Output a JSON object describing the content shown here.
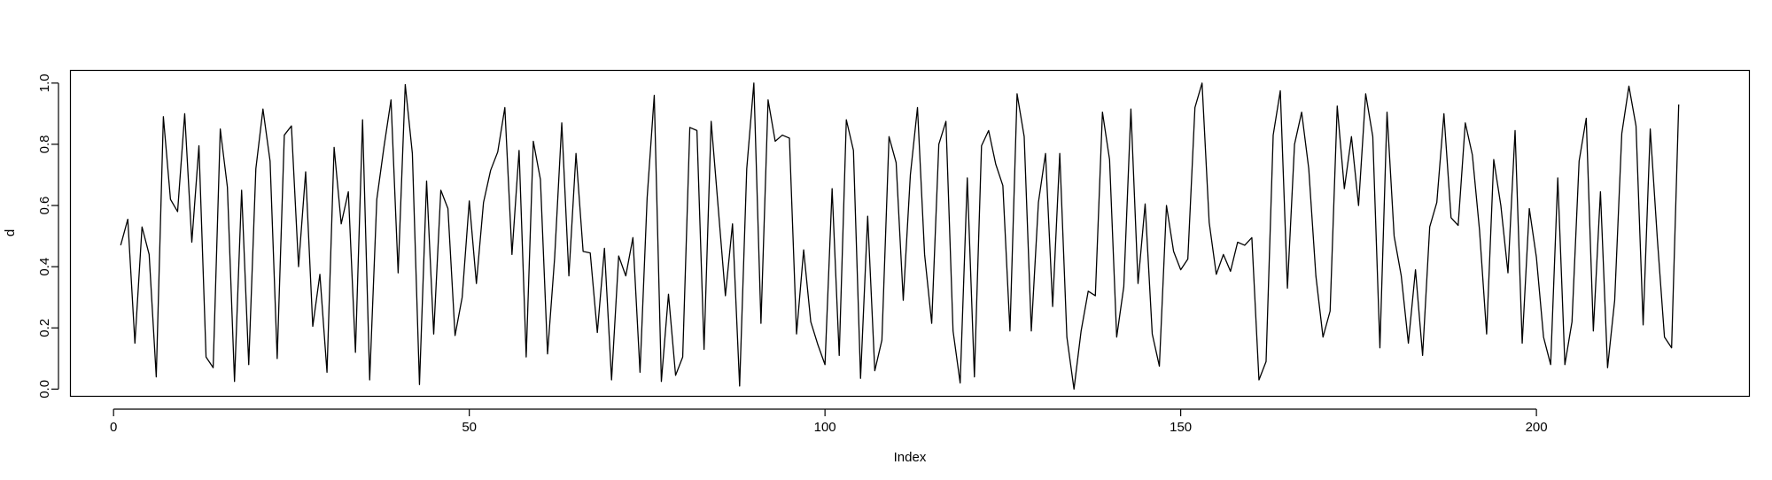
{
  "chart_data": {
    "type": "line",
    "title": "",
    "xlabel": "Index",
    "ylabel": "d",
    "xlim": [
      -6,
      230
    ],
    "ylim": [
      -0.025,
      1.04
    ],
    "x_ticks": [
      0,
      50,
      100,
      150,
      200
    ],
    "x_tick_labels": [
      "0",
      "50",
      "100",
      "150",
      "200"
    ],
    "y_ticks": [
      0.0,
      0.2,
      0.4,
      0.6,
      0.8,
      1.0
    ],
    "y_tick_labels": [
      "0.0",
      "0.2",
      "0.4",
      "0.6",
      "0.8",
      "1.0"
    ],
    "grid": false,
    "line_color": "#000000",
    "series": [
      {
        "x": [
          1,
          2,
          3,
          4,
          5,
          6,
          7,
          8,
          9,
          10,
          11,
          12,
          13,
          14,
          15,
          16,
          17,
          18,
          19,
          20,
          21,
          22,
          23,
          24,
          25,
          26,
          27,
          28,
          29,
          30,
          31,
          32,
          33,
          34,
          35,
          36,
          37,
          38,
          39,
          40,
          41,
          42,
          43,
          44,
          45,
          46,
          47,
          48,
          49,
          50,
          51,
          52,
          53,
          54,
          55,
          56,
          57,
          58,
          59,
          60,
          61,
          62,
          63,
          64,
          65,
          66,
          67,
          68,
          69,
          70,
          71,
          72,
          73,
          74,
          75,
          76,
          77,
          78,
          79,
          80,
          81,
          82,
          83,
          84,
          85,
          86,
          87,
          88,
          89,
          90,
          91,
          92,
          93,
          94,
          95,
          96,
          97,
          98,
          99,
          100,
          101,
          102,
          103,
          104,
          105,
          106,
          107,
          108,
          109,
          110,
          111,
          112,
          113,
          114,
          115,
          116,
          117,
          118,
          119,
          120,
          121,
          122,
          123,
          124,
          125,
          126,
          127,
          128,
          129,
          130,
          131,
          132,
          133,
          134,
          135,
          136,
          137,
          138,
          139,
          140,
          141,
          142,
          143,
          144,
          145,
          146,
          147,
          148,
          149,
          150,
          151,
          152,
          153,
          154,
          155,
          156,
          157,
          158,
          159,
          160,
          161,
          162,
          163,
          164,
          165,
          166,
          167,
          168,
          169,
          170,
          171,
          172,
          173,
          174,
          175,
          176,
          177,
          178,
          179,
          180,
          181,
          182,
          183,
          184,
          185,
          186,
          187,
          188,
          189,
          190,
          191,
          192,
          193,
          194,
          195,
          196,
          197,
          198,
          199,
          200,
          201,
          202,
          203,
          204,
          205,
          206,
          207,
          208,
          209,
          210,
          211,
          212,
          213,
          214,
          215,
          216,
          217,
          218,
          219,
          220
        ],
        "y": [
          0.47,
          0.555,
          0.15,
          0.53,
          0.44,
          0.04,
          0.89,
          0.62,
          0.58,
          0.9,
          0.48,
          0.795,
          0.105,
          0.07,
          0.85,
          0.66,
          0.025,
          0.65,
          0.08,
          0.72,
          0.915,
          0.745,
          0.1,
          0.83,
          0.86,
          0.4,
          0.71,
          0.205,
          0.375,
          0.055,
          0.79,
          0.54,
          0.645,
          0.12,
          0.88,
          0.03,
          0.62,
          0.79,
          0.945,
          0.38,
          0.995,
          0.77,
          0.015,
          0.68,
          0.18,
          0.65,
          0.59,
          0.175,
          0.3,
          0.615,
          0.345,
          0.61,
          0.715,
          0.775,
          0.92,
          0.44,
          0.78,
          0.105,
          0.81,
          0.685,
          0.115,
          0.43,
          0.87,
          0.37,
          0.77,
          0.45,
          0.445,
          0.185,
          0.46,
          0.03,
          0.435,
          0.37,
          0.495,
          0.055,
          0.625,
          0.96,
          0.025,
          0.31,
          0.045,
          0.105,
          0.855,
          0.845,
          0.13,
          0.875,
          0.59,
          0.305,
          0.54,
          0.01,
          0.72,
          1.0,
          0.215,
          0.945,
          0.81,
          0.83,
          0.82,
          0.18,
          0.455,
          0.22,
          0.145,
          0.08,
          0.655,
          0.11,
          0.88,
          0.78,
          0.035,
          0.565,
          0.06,
          0.16,
          0.825,
          0.74,
          0.29,
          0.7,
          0.92,
          0.44,
          0.215,
          0.8,
          0.875,
          0.19,
          0.02,
          0.69,
          0.04,
          0.795,
          0.845,
          0.735,
          0.665,
          0.19,
          0.965,
          0.825,
          0.19,
          0.61,
          0.77,
          0.27,
          0.77,
          0.17,
          0.0,
          0.19,
          0.32,
          0.305,
          0.905,
          0.75,
          0.17,
          0.335,
          0.915,
          0.345,
          0.605,
          0.18,
          0.075,
          0.6,
          0.45,
          0.39,
          0.425,
          0.92,
          1.0,
          0.545,
          0.375,
          0.44,
          0.385,
          0.48,
          0.47,
          0.495,
          0.03,
          0.09,
          0.83,
          0.975,
          0.33,
          0.8,
          0.905,
          0.72,
          0.37,
          0.17,
          0.255,
          0.925,
          0.655,
          0.825,
          0.6,
          0.965,
          0.825,
          0.135,
          0.905,
          0.5,
          0.37,
          0.15,
          0.39,
          0.11,
          0.53,
          0.61,
          0.9,
          0.56,
          0.535,
          0.87,
          0.765,
          0.52,
          0.18,
          0.75,
          0.6,
          0.38,
          0.845,
          0.15,
          0.59,
          0.43,
          0.17,
          0.08,
          0.69,
          0.08,
          0.22,
          0.745,
          0.885,
          0.19,
          0.645,
          0.07,
          0.29,
          0.835,
          0.99,
          0.86,
          0.21,
          0.85,
          0.49,
          0.17,
          0.135,
          0.93
        ]
      }
    ]
  }
}
